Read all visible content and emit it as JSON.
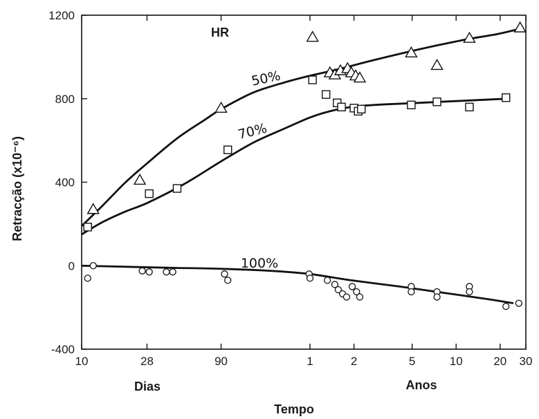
{
  "chart_data": {
    "type": "line",
    "title": "",
    "xlabel": "Tempo",
    "ylabel": "Retracção (x10⁻⁶)",
    "x_scale": "log",
    "x_unit": "days",
    "xlim": [
      10,
      10950
    ],
    "ylim": [
      -400,
      1200
    ],
    "y_ticks": [
      -400,
      0,
      400,
      800,
      1200
    ],
    "x_ticks": [
      {
        "value": 10,
        "label": "10"
      },
      {
        "value": 28,
        "label": "28"
      },
      {
        "value": 90,
        "label": "90"
      },
      {
        "value": 365,
        "label": "1"
      },
      {
        "value": 730,
        "label": "2"
      },
      {
        "value": 1825,
        "label": "5"
      },
      {
        "value": 3650,
        "label": "10"
      },
      {
        "value": 7300,
        "label": "20"
      },
      {
        "value": 10950,
        "label": "30"
      }
    ],
    "x_group_labels": [
      "Dias",
      "Anos"
    ],
    "legend_title": "HR",
    "grid": false,
    "series": [
      {
        "name": "50%",
        "marker": "triangle",
        "curve": [
          [
            10,
            190
          ],
          [
            14,
            290
          ],
          [
            20,
            400
          ],
          [
            28,
            490
          ],
          [
            45,
            610
          ],
          [
            70,
            700
          ],
          [
            90,
            750
          ],
          [
            150,
            830
          ],
          [
            250,
            880
          ],
          [
            365,
            910
          ],
          [
            600,
            945
          ],
          [
            1000,
            985
          ],
          [
            2000,
            1035
          ],
          [
            4000,
            1080
          ],
          [
            7000,
            1110
          ],
          [
            10000,
            1135
          ]
        ],
        "points": [
          [
            12,
            270
          ],
          [
            25,
            410
          ],
          [
            90,
            755
          ],
          [
            380,
            1095
          ],
          [
            500,
            925
          ],
          [
            540,
            915
          ],
          [
            590,
            935
          ],
          [
            660,
            945
          ],
          [
            700,
            925
          ],
          [
            750,
            910
          ],
          [
            800,
            900
          ],
          [
            1800,
            1020
          ],
          [
            2700,
            960
          ],
          [
            4500,
            1090
          ],
          [
            10000,
            1140
          ]
        ]
      },
      {
        "name": "70%",
        "marker": "square",
        "curve": [
          [
            10,
            150
          ],
          [
            14,
            210
          ],
          [
            20,
            260
          ],
          [
            28,
            300
          ],
          [
            50,
            390
          ],
          [
            90,
            500
          ],
          [
            150,
            590
          ],
          [
            250,
            660
          ],
          [
            365,
            710
          ],
          [
            500,
            740
          ],
          [
            700,
            760
          ],
          [
            1000,
            770
          ],
          [
            2000,
            780
          ],
          [
            4000,
            790
          ],
          [
            8000,
            800
          ]
        ],
        "points": [
          [
            11,
            185
          ],
          [
            29,
            345
          ],
          [
            45,
            370
          ],
          [
            100,
            555
          ],
          [
            380,
            890
          ],
          [
            470,
            820
          ],
          [
            560,
            780
          ],
          [
            600,
            760
          ],
          [
            730,
            755
          ],
          [
            780,
            740
          ],
          [
            820,
            750
          ],
          [
            1800,
            770
          ],
          [
            2700,
            785
          ],
          [
            4500,
            760
          ],
          [
            8000,
            805
          ]
        ]
      },
      {
        "name": "100%",
        "marker": "circle",
        "curve": [
          [
            10,
            0
          ],
          [
            20,
            -5
          ],
          [
            40,
            -10
          ],
          [
            90,
            -15
          ],
          [
            200,
            -25
          ],
          [
            365,
            -40
          ],
          [
            700,
            -70
          ],
          [
            1500,
            -100
          ],
          [
            3000,
            -130
          ],
          [
            6000,
            -160
          ],
          [
            9000,
            -180
          ]
        ],
        "points": [
          [
            11,
            -60
          ],
          [
            12,
            0
          ],
          [
            26,
            -25
          ],
          [
            29,
            -30
          ],
          [
            38,
            -30
          ],
          [
            42,
            -30
          ],
          [
            95,
            -40
          ],
          [
            100,
            -70
          ],
          [
            360,
            -40
          ],
          [
            365,
            -60
          ],
          [
            480,
            -70
          ],
          [
            540,
            -90
          ],
          [
            570,
            -115
          ],
          [
            610,
            -135
          ],
          [
            650,
            -150
          ],
          [
            710,
            -100
          ],
          [
            760,
            -125
          ],
          [
            800,
            -150
          ],
          [
            1800,
            -100
          ],
          [
            1800,
            -125
          ],
          [
            2700,
            -125
          ],
          [
            2700,
            -150
          ],
          [
            4500,
            -100
          ],
          [
            4500,
            -125
          ],
          [
            8000,
            -195
          ],
          [
            9800,
            -180
          ]
        ]
      }
    ]
  }
}
